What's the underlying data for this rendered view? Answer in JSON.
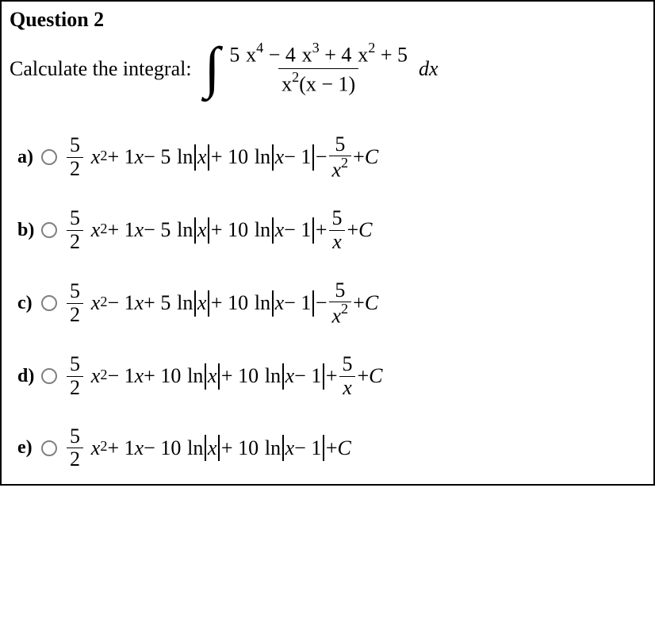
{
  "question": {
    "title": "Question 2",
    "prompt": "Calculate the integral:",
    "integral": {
      "numerator_html": "5<span class='sp'></span><span class='it'>x</span><span class='sup'>4</span> − 4<span class='sp'></span><span class='it'>x</span><span class='sup'>3</span> + 4<span class='sp'></span><span class='it'>x</span><span class='sup'>2</span> + 5",
      "denominator_html": "<span class='it'>x</span><span class='sup'>2</span>(<span class='it'>x</span> − 1)",
      "dx": "dx"
    }
  },
  "options": [
    {
      "label": "a)",
      "expr_html": "<span class='frac small'><span class='num'>5</span><span class='den'>2</span></span><span class='sp'></span><span class='it'>x</span><span class='sup'>2</span> + 1<span class='it'>x</span> − 5<span class='sp'></span>ln<span class='abs'><span class='it'>x</span></span> + 10<span class='sp'></span>ln<span class='abs'><span class='it'>x</span> − 1</span> − <span class='frac small'><span class='num'>5</span><span class='den'><span class='it'>x</span><span class='sup'>2</span></span></span> + <span class='it'>C</span>"
    },
    {
      "label": "b)",
      "expr_html": "<span class='frac small'><span class='num'>5</span><span class='den'>2</span></span><span class='sp'></span><span class='it'>x</span><span class='sup'>2</span> + 1<span class='it'>x</span> − 5<span class='sp'></span>ln<span class='abs'><span class='it'>x</span></span> + 10<span class='sp'></span>ln<span class='abs'><span class='it'>x</span> − 1</span> + <span class='frac small'><span class='num'>5</span><span class='den'><span class='it'>x</span></span></span> + <span class='it'>C</span>"
    },
    {
      "label": "c)",
      "expr_html": "<span class='frac small'><span class='num'>5</span><span class='den'>2</span></span><span class='sp'></span><span class='it'>x</span><span class='sup'>2</span> − 1<span class='it'>x</span> + 5<span class='sp'></span>ln<span class='abs'><span class='it'>x</span></span> + 10<span class='sp'></span>ln<span class='abs'><span class='it'>x</span> − 1</span> − <span class='frac small'><span class='num'>5</span><span class='den'><span class='it'>x</span><span class='sup'>2</span></span></span> + <span class='it'>C</span>"
    },
    {
      "label": "d)",
      "expr_html": "<span class='frac small'><span class='num'>5</span><span class='den'>2</span></span><span class='sp'></span><span class='it'>x</span><span class='sup'>2</span> − 1<span class='it'>x</span> + 10<span class='sp'></span>ln<span class='abs'><span class='it'>x</span></span> + 10<span class='sp'></span>ln<span class='abs'><span class='it'>x</span> − 1</span> + <span class='frac small'><span class='num'>5</span><span class='den'><span class='it'>x</span></span></span> + <span class='it'>C</span>"
    },
    {
      "label": "e)",
      "expr_html": "<span class='frac small'><span class='num'>5</span><span class='den'>2</span></span><span class='sp'></span><span class='it'>x</span><span class='sup'>2</span> + 1<span class='it'>x</span> − 10<span class='sp'></span>ln<span class='abs'><span class='it'>x</span></span> + 10<span class='sp'></span>ln<span class='abs'><span class='it'>x</span> − 1</span> + <span class='it'>C</span>"
    }
  ]
}
